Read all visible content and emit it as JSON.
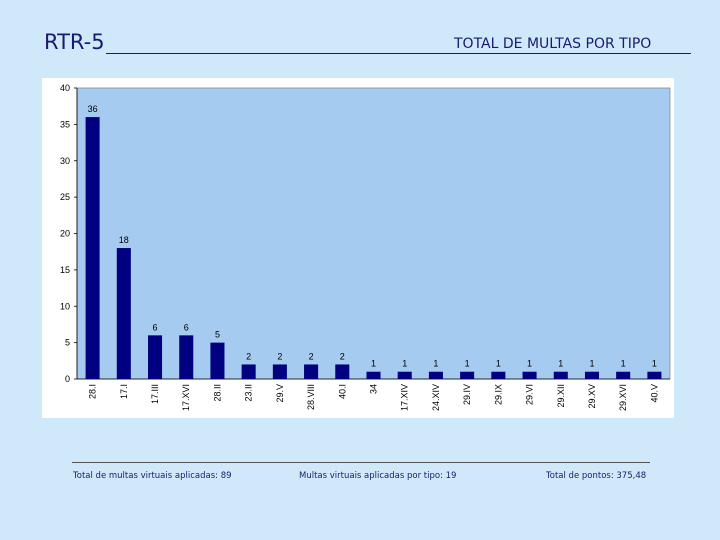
{
  "header": {
    "code": "RTR-5",
    "title": "TOTAL DE MULTAS POR TIPO"
  },
  "footer": {
    "total_multas": "Total de multas virtuais aplicadas: 89",
    "multas_por_tipo": "Multas virtuais aplicadas por tipo: 19",
    "total_pontos": "Total de pontos: 375,48"
  },
  "colors": {
    "background": "#cfe9fb",
    "plot_area": "#a6cbf0",
    "bar": "#000080",
    "text": "#1a1a6e"
  },
  "chart_data": {
    "type": "bar",
    "categories": [
      "28.I",
      "17.I",
      "17.III",
      "17.XVI",
      "28.II",
      "23.II",
      "29.V",
      "28.VIII",
      "40.I",
      "34",
      "17.XIV",
      "24.XIV",
      "29.IV",
      "29.IX",
      "29.VI",
      "29.XII",
      "29.XV",
      "29.XVI",
      "40.V"
    ],
    "values": [
      36,
      18,
      6,
      6,
      5,
      2,
      2,
      2,
      2,
      1,
      1,
      1,
      1,
      1,
      1,
      1,
      1,
      1,
      1
    ],
    "title": "",
    "xlabel": "",
    "ylabel": "",
    "ylim": [
      0,
      40
    ],
    "yticks": [
      0,
      5,
      10,
      15,
      20,
      25,
      30,
      35,
      40
    ],
    "grid": false,
    "legend": "none",
    "data_labels": true
  }
}
